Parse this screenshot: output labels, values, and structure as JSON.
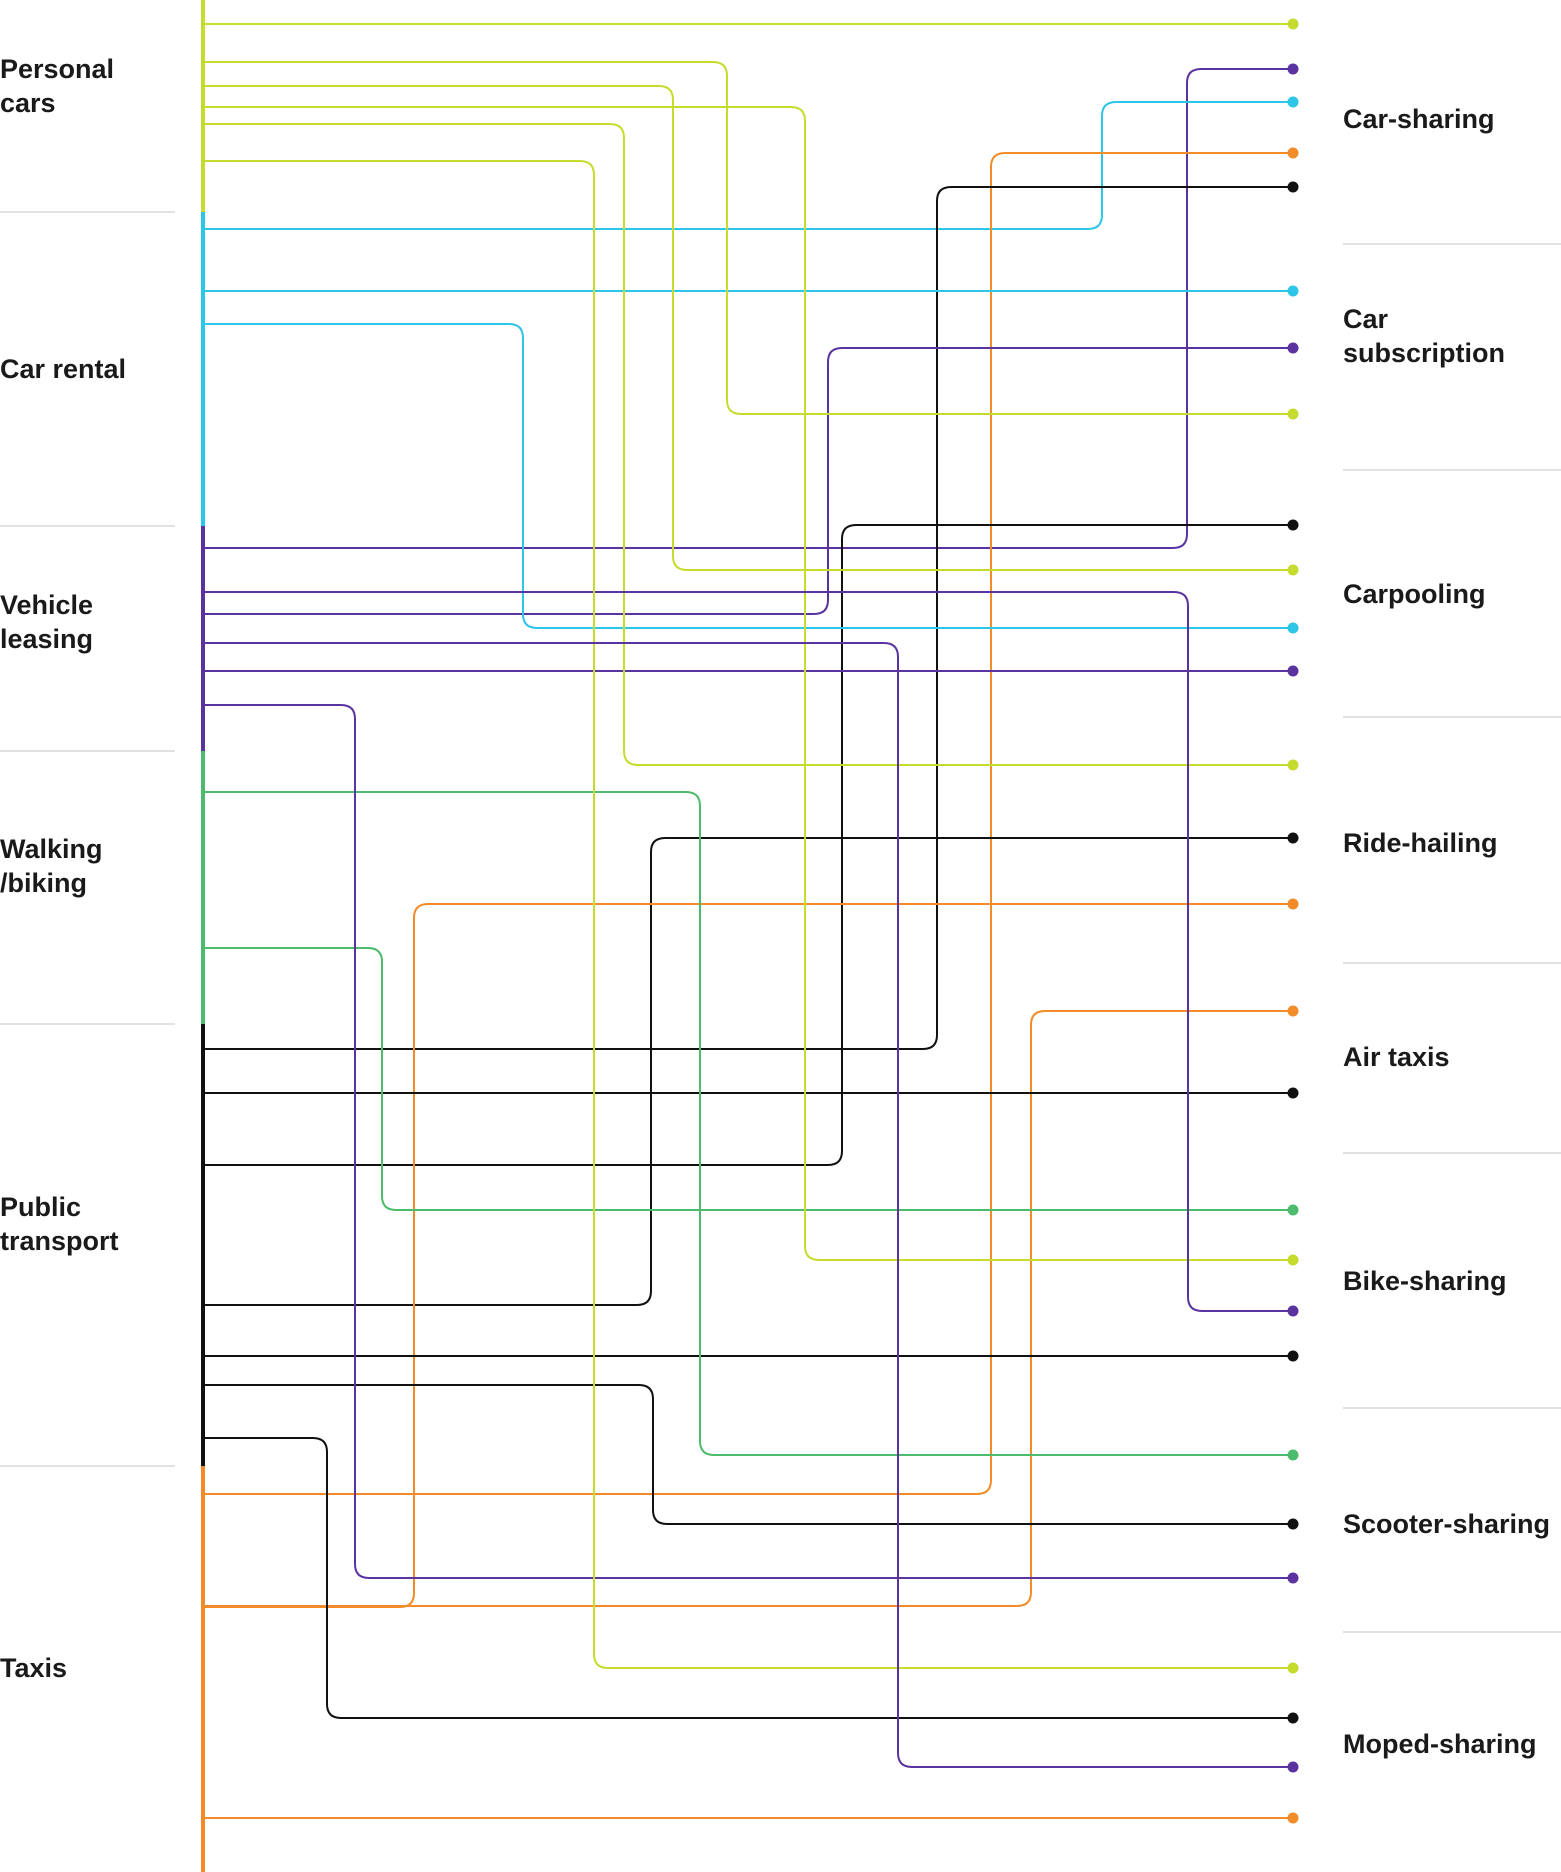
{
  "colors": {
    "personal_cars": "#c5dc2e",
    "car_rental": "#2ec6e8",
    "vehicle_leasing": "#5b33a0",
    "walking_biking": "#4dbb6c",
    "public_transport": "#111111",
    "taxis": "#f28c28",
    "separator": "#d9d9d9",
    "text": "#1a1a1a"
  },
  "sources": [
    {
      "key": "personal_cars",
      "lines": [
        "Personal",
        "cars"
      ]
    },
    {
      "key": "car_rental",
      "lines": [
        "Car rental"
      ]
    },
    {
      "key": "vehicle_leasing",
      "lines": [
        "Vehicle",
        "leasing"
      ]
    },
    {
      "key": "walking_biking",
      "lines": [
        "Walking",
        "/biking"
      ]
    },
    {
      "key": "public_transport",
      "lines": [
        "Public",
        "transport"
      ]
    },
    {
      "key": "taxis",
      "lines": [
        "Taxis"
      ]
    }
  ],
  "targets": [
    {
      "key": "car_sharing",
      "lines": [
        "Car-sharing"
      ]
    },
    {
      "key": "car_subscription",
      "lines": [
        "Car",
        "subscription"
      ]
    },
    {
      "key": "carpooling",
      "lines": [
        "Carpooling"
      ]
    },
    {
      "key": "ride_hailing",
      "lines": [
        "Ride-hailing"
      ]
    },
    {
      "key": "air_taxis",
      "lines": [
        "Air taxis"
      ]
    },
    {
      "key": "bike_sharing",
      "lines": [
        "Bike-sharing"
      ]
    },
    {
      "key": "scooter_sharing",
      "lines": [
        "Scooter-sharing"
      ]
    },
    {
      "key": "moped_sharing",
      "lines": [
        "Moped-sharing"
      ]
    }
  ],
  "connections": [
    {
      "from": "personal_cars",
      "to": "car_sharing"
    },
    {
      "from": "vehicle_leasing",
      "to": "car_sharing"
    },
    {
      "from": "car_rental",
      "to": "car_sharing"
    },
    {
      "from": "taxis",
      "to": "car_sharing"
    },
    {
      "from": "public_transport",
      "to": "car_sharing"
    },
    {
      "from": "car_rental",
      "to": "car_subscription"
    },
    {
      "from": "vehicle_leasing",
      "to": "car_subscription"
    },
    {
      "from": "personal_cars",
      "to": "car_subscription"
    },
    {
      "from": "public_transport",
      "to": "carpooling"
    },
    {
      "from": "personal_cars",
      "to": "carpooling"
    },
    {
      "from": "car_rental",
      "to": "carpooling"
    },
    {
      "from": "vehicle_leasing",
      "to": "carpooling"
    },
    {
      "from": "personal_cars",
      "to": "ride_hailing"
    },
    {
      "from": "public_transport",
      "to": "ride_hailing"
    },
    {
      "from": "taxis",
      "to": "ride_hailing"
    },
    {
      "from": "taxis",
      "to": "air_taxis"
    },
    {
      "from": "public_transport",
      "to": "air_taxis"
    },
    {
      "from": "walking_biking",
      "to": "bike_sharing"
    },
    {
      "from": "personal_cars",
      "to": "bike_sharing"
    },
    {
      "from": "vehicle_leasing",
      "to": "bike_sharing"
    },
    {
      "from": "public_transport",
      "to": "bike_sharing"
    },
    {
      "from": "walking_biking",
      "to": "scooter_sharing"
    },
    {
      "from": "public_transport",
      "to": "scooter_sharing"
    },
    {
      "from": "vehicle_leasing",
      "to": "scooter_sharing"
    },
    {
      "from": "personal_cars",
      "to": "moped_sharing"
    },
    {
      "from": "public_transport",
      "to": "moped_sharing"
    },
    {
      "from": "vehicle_leasing",
      "to": "moped_sharing"
    },
    {
      "from": "taxis",
      "to": "moped_sharing"
    }
  ]
}
